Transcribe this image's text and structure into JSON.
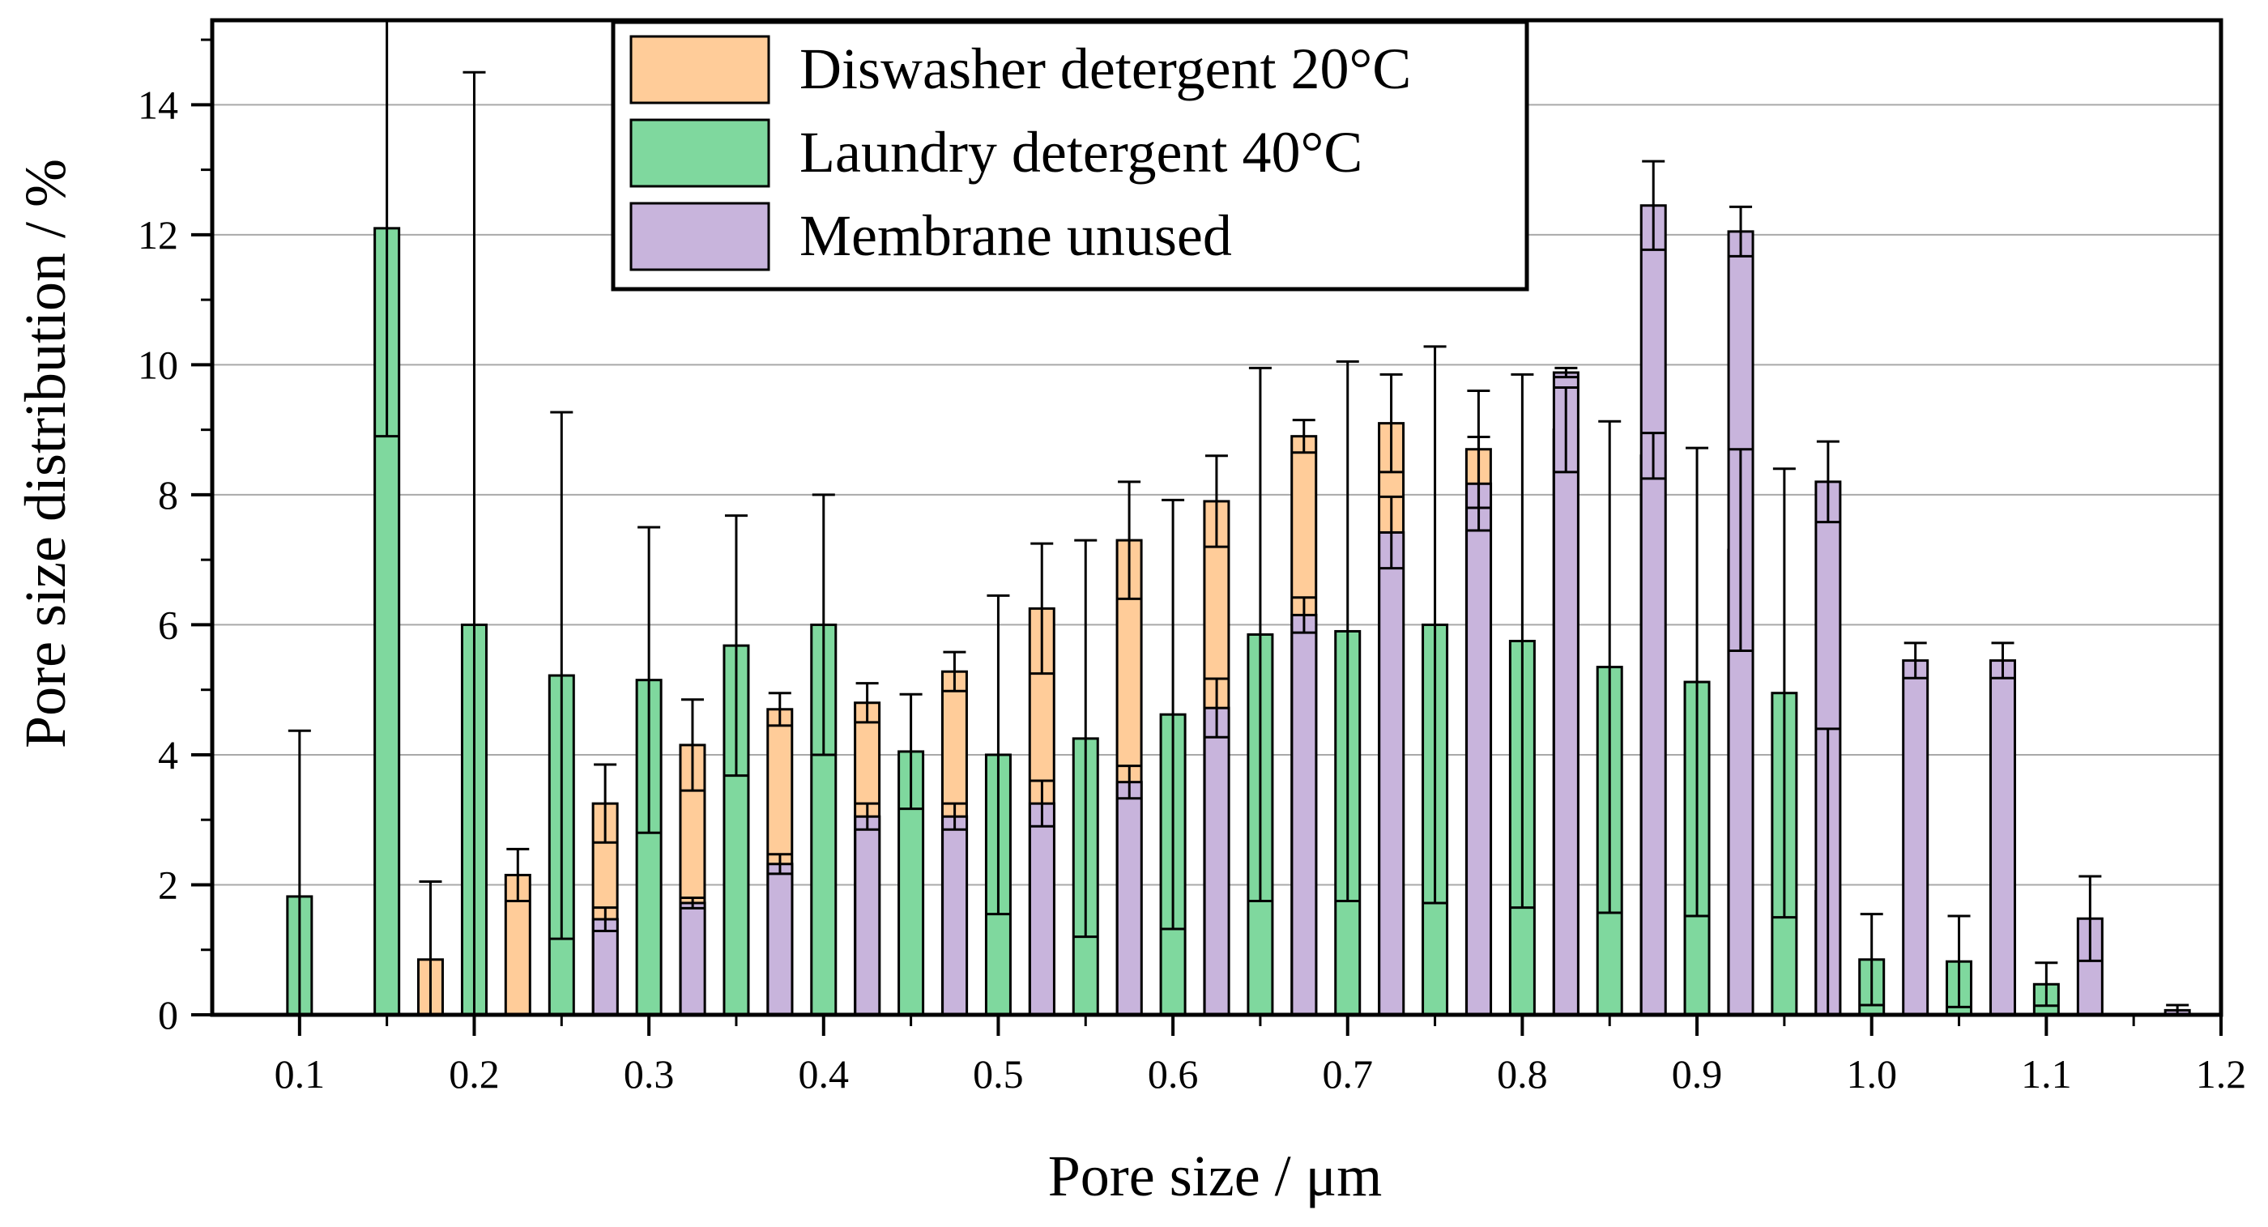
{
  "chart_data": {
    "type": "bar",
    "title": "",
    "xlabel": "Pore size / μm",
    "ylabel": "Pore size distribution / %",
    "xlim": [
      0.05,
      1.2
    ],
    "ylim": [
      0,
      15.3
    ],
    "grid": true,
    "legend_position": "top-center",
    "x_tick_labels": [
      "0.1",
      "0.2",
      "0.3",
      "0.4",
      "0.5",
      "0.6",
      "0.7",
      "0.8",
      "0.9",
      "1.0",
      "1.1",
      "1.2"
    ],
    "x_tick_values": [
      0.1,
      0.2,
      0.3,
      0.4,
      0.5,
      0.6,
      0.7,
      0.8,
      0.9,
      1.0,
      1.1,
      1.2
    ],
    "y_tick_labels": [
      "0",
      "2",
      "4",
      "6",
      "8",
      "10",
      "12",
      "14"
    ],
    "y_tick_values": [
      0,
      2,
      4,
      6,
      8,
      10,
      12,
      14
    ],
    "series": [
      {
        "name": "Diswasher detergent 20°C",
        "color": "#ffcc99",
        "x": [
          0.1,
          0.15,
          0.2,
          0.25,
          0.3,
          0.35,
          0.4,
          0.45,
          0.5,
          0.55,
          0.6,
          0.65,
          0.7,
          0.75,
          0.8,
          0.85,
          0.9,
          0.95,
          1.0,
          1.05,
          1.1,
          1.15
        ],
        "values": [
          0,
          0,
          0.85,
          2.15,
          3.25,
          4.15,
          4.7,
          4.8,
          5.28,
          6.25,
          7.3,
          7.9,
          8.9,
          9.1,
          8.7,
          9.0,
          8.6,
          7.15,
          1.9,
          0,
          0,
          0
        ],
        "errors": [
          0,
          0,
          1.2,
          0.4,
          0.6,
          0.7,
          0.25,
          0.3,
          0.3,
          1.0,
          0.9,
          0.7,
          0.25,
          0.75,
          0.9,
          0.65,
          0.35,
          1.55,
          2.5,
          0,
          0,
          0
        ]
      },
      {
        "name": "Laundry detergent 40°C",
        "color": "#7fd89e",
        "x": [
          0.1,
          0.15,
          0.2,
          0.25,
          0.3,
          0.35,
          0.4,
          0.45,
          0.5,
          0.55,
          0.6,
          0.65,
          0.7,
          0.75,
          0.8,
          0.85,
          0.9,
          0.95,
          1.0,
          1.05,
          1.1,
          1.15
        ],
        "values": [
          1.82,
          12.1,
          6.0,
          5.22,
          5.15,
          5.68,
          6.0,
          4.05,
          4.0,
          4.25,
          4.62,
          5.85,
          5.9,
          6.0,
          5.75,
          5.35,
          5.12,
          4.95,
          0.85,
          0.82,
          0.47,
          0
        ],
        "errors": [
          2.55,
          3.2,
          8.5,
          4.05,
          2.35,
          2.0,
          2.0,
          0.88,
          2.45,
          3.05,
          3.3,
          4.1,
          4.15,
          4.28,
          4.1,
          3.78,
          3.6,
          3.45,
          0.7,
          0.7,
          0.33,
          0
        ]
      },
      {
        "name": "Membrane unused",
        "color": "#c8b4dc",
        "x": [
          0.1,
          0.15,
          0.2,
          0.25,
          0.3,
          0.35,
          0.4,
          0.45,
          0.5,
          0.55,
          0.6,
          0.65,
          0.7,
          0.75,
          0.8,
          0.85,
          0.9,
          0.95,
          1.0,
          1.05,
          1.1,
          1.15
        ],
        "values": [
          0,
          0,
          0,
          1.47,
          1.72,
          2.32,
          3.05,
          3.05,
          3.25,
          3.58,
          4.72,
          6.15,
          7.42,
          8.17,
          9.88,
          12.45,
          12.05,
          8.2,
          5.45,
          5.45,
          1.48,
          0.07
        ],
        "errors": [
          0,
          0,
          0,
          0.18,
          0.08,
          0.15,
          0.2,
          0.2,
          0.35,
          0.25,
          0.45,
          0.27,
          0.55,
          0.72,
          0.07,
          0.68,
          0.38,
          0.62,
          0.27,
          0.27,
          0.65,
          0.08
        ]
      }
    ]
  }
}
